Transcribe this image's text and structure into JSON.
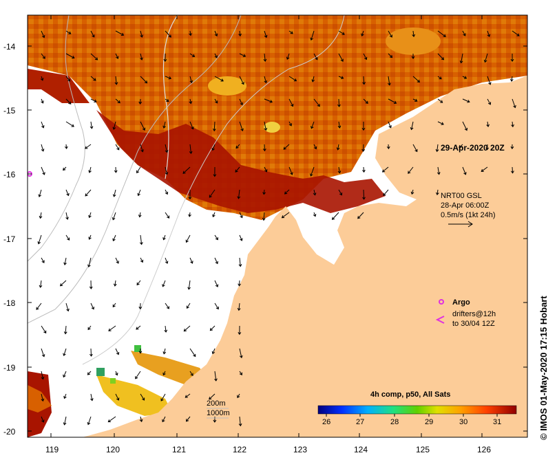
{
  "map": {
    "date_label": "29-Apr-2020 20Z",
    "current_legend": {
      "model": "NRT00 GSL",
      "time": "28-Apr 06:00Z",
      "scale": "0.5m/s (1kt 24h)"
    },
    "argo_label": "Argo",
    "drifters_line1": "drifters@12h",
    "drifters_line2": "to 30/04 12Z",
    "depth_200": "200m",
    "depth_1000": "1000m",
    "colorbar_title": "4h comp, p50, All Sats",
    "colorbar_ticks": [
      "26",
      "27",
      "28",
      "29",
      "30",
      "31"
    ],
    "credit": "© IMOS 01-May-2020 17:15 Hobart",
    "lon_ticks": [
      "119",
      "120",
      "121",
      "122",
      "123",
      "124",
      "125",
      "126"
    ],
    "lat_ticks": [
      "-14",
      "-15",
      "-16",
      "-17",
      "-18",
      "-19",
      "-20"
    ],
    "colors": {
      "land": "#fccc98",
      "sst_dark": "#a01000",
      "sst_mid": "#d85a00",
      "sst_light": "#e88a10",
      "argo": "#e030e0"
    }
  }
}
